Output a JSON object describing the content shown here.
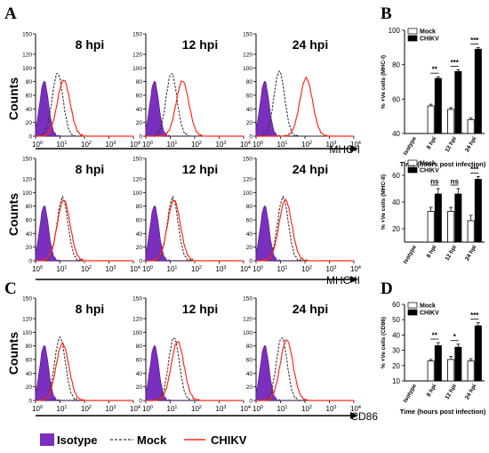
{
  "panel_letters": {
    "a": "A",
    "b": "B",
    "c": "C",
    "d": "D"
  },
  "colors": {
    "isotype": "#7b2fbe",
    "mock": "#333333",
    "chikv": "#ff2a1a",
    "bar_mock": "#ffffff",
    "bar_chikv": "#000000"
  },
  "histograms": {
    "ylabel": "Counts",
    "y_ticks": [
      "0",
      "20",
      "40",
      "60",
      "80",
      "100",
      "120",
      "150"
    ],
    "x_ticks": [
      {
        "b": "10",
        "e": "0"
      },
      {
        "b": "10",
        "e": "1"
      },
      {
        "b": "10",
        "e": "2"
      },
      {
        "b": "10",
        "e": "3"
      },
      {
        "b": "10",
        "e": "4"
      }
    ],
    "rows": [
      {
        "marker": "MHC-I",
        "panels": [
          {
            "label": "8 hpi",
            "iso": [
              0.35,
              60
            ],
            "mock": [
              0.9,
              66
            ],
            "chikv": [
              1.15,
              61
            ]
          },
          {
            "label": "12 hpi",
            "iso": [
              0.35,
              60
            ],
            "mock": [
              1.05,
              66
            ],
            "chikv": [
              1.5,
              60
            ]
          },
          {
            "label": "24 hpi",
            "iso": [
              0.35,
              60
            ],
            "mock": [
              0.95,
              68
            ],
            "chikv": [
              2.05,
              63
            ]
          }
        ]
      },
      {
        "marker": "MHC-II",
        "panels": [
          {
            "label": "8 hpi",
            "iso": [
              0.35,
              60
            ],
            "mock": [
              1.1,
              66
            ],
            "chikv": [
              1.15,
              66
            ]
          },
          {
            "label": "12 hpi",
            "iso": [
              0.35,
              60
            ],
            "mock": [
              1.1,
              66
            ],
            "chikv": [
              1.15,
              66
            ]
          },
          {
            "label": "24 hpi",
            "iso": [
              0.35,
              60
            ],
            "mock": [
              1.1,
              66
            ],
            "chikv": [
              1.2,
              66
            ]
          }
        ]
      },
      {
        "marker": "CD86",
        "panels": [
          {
            "label": "8 hpi",
            "iso": [
              0.35,
              60
            ],
            "mock": [
              1.0,
              66
            ],
            "chikv": [
              1.1,
              62
            ]
          },
          {
            "label": "12 hpi",
            "iso": [
              0.35,
              60
            ],
            "mock": [
              1.15,
              66
            ],
            "chikv": [
              1.3,
              64
            ]
          },
          {
            "label": "24 hpi",
            "iso": [
              0.35,
              60
            ],
            "mock": [
              1.05,
              66
            ],
            "chikv": [
              1.25,
              66
            ]
          }
        ]
      }
    ]
  },
  "legend": {
    "isotype": "Isotype",
    "mock": "Mock",
    "chikv": "CHIKV"
  },
  "chart_data": [
    {
      "type": "bar",
      "panel": "B",
      "categories": [
        "Isotype",
        "8 hpi",
        "12 hpi",
        "24 hpi"
      ],
      "series": [
        {
          "name": "Mock",
          "values": [
            null,
            56,
            54,
            48
          ]
        },
        {
          "name": "CHIKV",
          "values": [
            null,
            72,
            76,
            89
          ]
        }
      ],
      "error": [
        [
          null,
          1,
          1,
          1
        ],
        [
          null,
          1,
          1,
          1
        ]
      ],
      "significance": [
        "",
        "**",
        "***",
        "***"
      ],
      "ylabel": "% +Ve cells (MHC-I)",
      "xlabel": "Time (hours post infection)",
      "ylim": [
        40,
        100
      ],
      "yticks": [
        40,
        60,
        80,
        100
      ],
      "legend_position": "top-left"
    },
    {
      "type": "bar",
      "panel": "B",
      "categories": [
        "Isotype",
        "8 hpi",
        "12 hpi",
        "24 hpi"
      ],
      "series": [
        {
          "name": "Mock",
          "values": [
            null,
            33,
            33,
            26
          ]
        },
        {
          "name": "CHIKV",
          "values": [
            null,
            46,
            46,
            57
          ]
        }
      ],
      "error": [
        [
          null,
          3,
          3,
          4
        ],
        [
          null,
          4,
          4,
          2
        ]
      ],
      "significance": [
        "",
        "ns",
        "ns",
        "***"
      ],
      "ylabel": "% +Ve cells (MHC-II)",
      "xlabel": "",
      "ylim": [
        10,
        70
      ],
      "yticks": [
        20,
        40,
        60
      ],
      "legend_position": "top-left"
    },
    {
      "type": "bar",
      "panel": "D",
      "categories": [
        "Isotype",
        "8 hpi",
        "12 hpi",
        "24 hpi"
      ],
      "series": [
        {
          "name": "Mock",
          "values": [
            null,
            23,
            24,
            23
          ]
        },
        {
          "name": "CHIKV",
          "values": [
            null,
            33,
            32,
            46
          ]
        }
      ],
      "error": [
        [
          null,
          1,
          2,
          1.5
        ],
        [
          null,
          2,
          2,
          2
        ]
      ],
      "significance": [
        "",
        "**",
        "*",
        "***"
      ],
      "ylabel": "% +Ve cells (CD86)",
      "xlabel": "Time (hours post infection)",
      "ylim": [
        10,
        60
      ],
      "yticks": [
        10,
        20,
        30,
        40,
        50,
        60
      ],
      "legend_position": "top-left"
    }
  ]
}
